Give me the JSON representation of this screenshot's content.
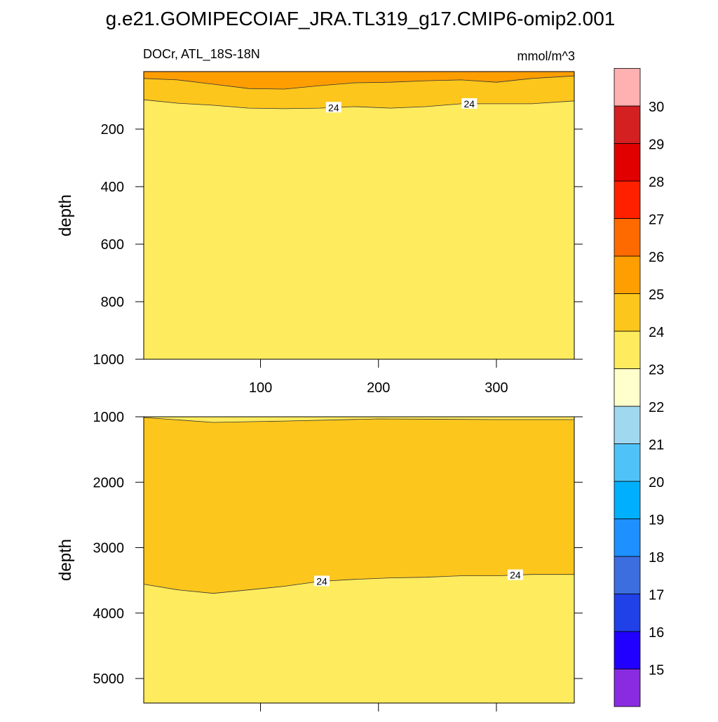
{
  "chart_data": {
    "type": "contour",
    "title": "g.e21.GOMIPECOIAF_JRA.TL319_g17.CMIP6-omip2.001",
    "left_subtitle": "DOCr, ATL_18S-18N",
    "right_subtitle": "mmol/m^3",
    "colorbar": {
      "levels": [
        15,
        16,
        17,
        18,
        19,
        20,
        21,
        22,
        23,
        24,
        25,
        26,
        27,
        28,
        29,
        30
      ],
      "colors": [
        "#8a2be2",
        "#2200ff",
        "#2040e8",
        "#3c6ee0",
        "#1e90ff",
        "#00b0ff",
        "#4fc3f7",
        "#a0d8ef",
        "#ffffcc",
        "#ffeb5e",
        "#fcc61c",
        "#ff9e00",
        "#ff6a00",
        "#ff2000",
        "#e00000",
        "#d42020",
        "#ffb0b0"
      ]
    },
    "panels": [
      {
        "ylabel": "depth",
        "xlim": [
          1,
          366
        ],
        "xticks": [
          100,
          200,
          300
        ],
        "show_xtick_labels": true,
        "ylim": [
          0,
          1000
        ],
        "yticks": [
          200,
          400,
          600,
          800,
          1000
        ],
        "fills": [
          25,
          24,
          23
        ],
        "contours": [
          {
            "level": 25,
            "x": [
              1,
              30,
              60,
              90,
              120,
              150,
              180,
              210,
              240,
              270,
              300,
              330,
              366
            ],
            "y": [
              24,
              29,
              44,
              59,
              61,
              49,
              39,
              37,
              32,
              29,
              37,
              24,
              15
            ],
            "labels": []
          },
          {
            "level": 24,
            "x": [
              1,
              30,
              60,
              90,
              120,
              150,
              180,
              210,
              240,
              270,
              300,
              330,
              366
            ],
            "y": [
              98,
              110,
              117,
              127,
              129,
              127,
              122,
              127,
              122,
              112,
              112,
              112,
              102
            ],
            "labels": [
              {
                "label": "24",
                "x": 162
              },
              {
                "label": "24",
                "x": 277
              }
            ]
          }
        ]
      },
      {
        "ylabel": "depth",
        "xlim": [
          1,
          366
        ],
        "xticks": [
          100,
          200,
          300
        ],
        "show_xtick_labels": false,
        "ylim": [
          1000,
          5375
        ],
        "yticks": [
          1000,
          2000,
          3000,
          4000,
          5000
        ],
        "fills": [
          23,
          24,
          23
        ],
        "contours": [
          {
            "level": 24,
            "x": [
              1,
              60,
              120,
              200,
              300,
              366
            ],
            "y": [
              1011,
              1086,
              1065,
              1032,
              1043,
              1043
            ],
            "labels": []
          },
          {
            "level": 24,
            "x": [
              1,
              30,
              60,
              90,
              120,
              150,
              180,
              210,
              240,
              270,
              300,
              330,
              366
            ],
            "y": [
              3559,
              3645,
              3699,
              3645,
              3591,
              3516,
              3484,
              3462,
              3452,
              3430,
              3430,
              3409,
              3409
            ],
            "labels": [
              {
                "label": "24",
                "x": 152
              },
              {
                "label": "24",
                "x": 316
              }
            ]
          }
        ]
      }
    ]
  }
}
